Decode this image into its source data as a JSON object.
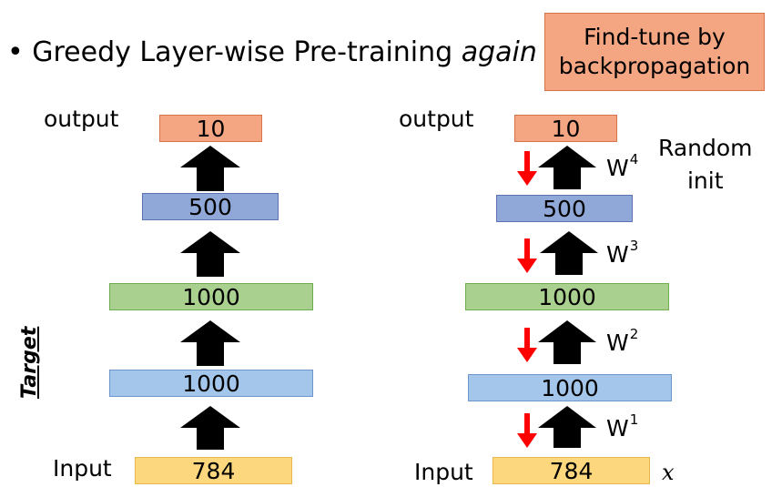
{
  "title": {
    "prefix": "Greedy Layer-wise Pre-training ",
    "emphasis": "again"
  },
  "finetune": {
    "line1": "Find-tune by",
    "line2": "backpropagation"
  },
  "left": {
    "output_label": "output",
    "input_label": "Input",
    "target_label": "Target",
    "layers": [
      "10",
      "500",
      "1000",
      "1000",
      "784"
    ]
  },
  "right": {
    "output_label": "output",
    "input_label": "Input",
    "random_init": {
      "line1": "Random",
      "line2": "init"
    },
    "input_var": "x",
    "layers": [
      "10",
      "500",
      "1000",
      "1000",
      "784"
    ],
    "weights": [
      {
        "base": "W",
        "sup": "4"
      },
      {
        "base": "W",
        "sup": "3"
      },
      {
        "base": "W",
        "sup": "2"
      },
      {
        "base": "W",
        "sup": "1"
      }
    ]
  },
  "colors": {
    "up_arrow": "#000000",
    "down_arrow": "#ff0000"
  }
}
